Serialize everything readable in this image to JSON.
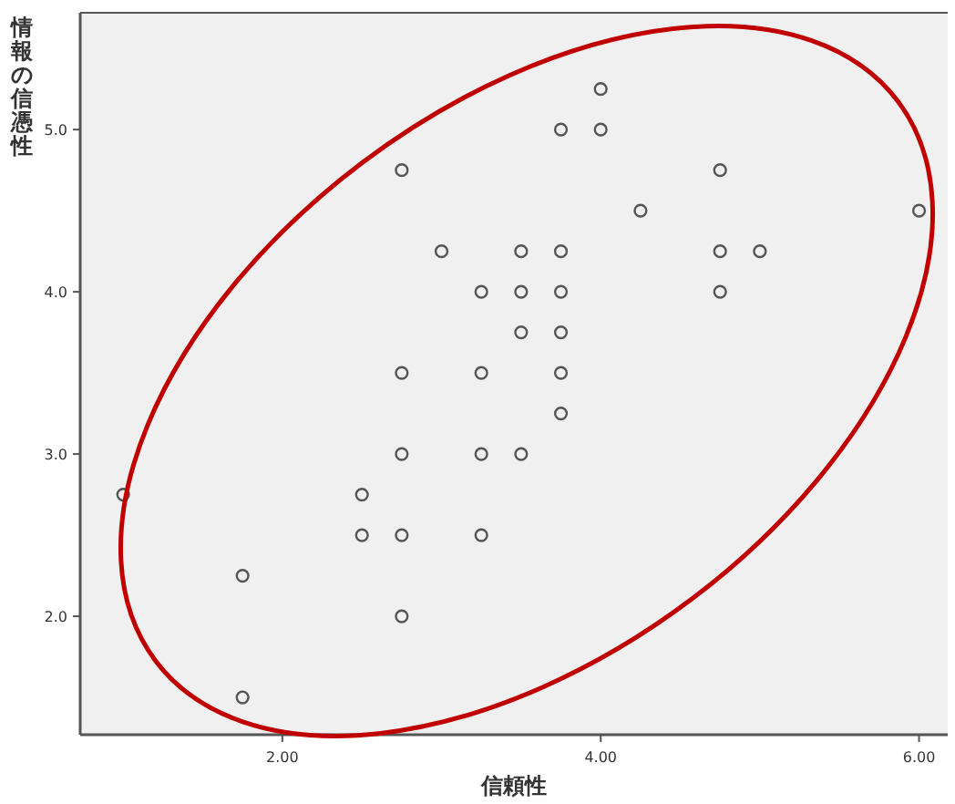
{
  "chart_data": {
    "type": "scatter",
    "xlabel": "信頼性",
    "ylabel": "情報の信憑性",
    "xlim": [
      0.73,
      6.18
    ],
    "ylim": [
      1.27,
      5.72
    ],
    "xticks": [
      {
        "value": 2,
        "label": "2.00"
      },
      {
        "value": 4,
        "label": "4.00"
      },
      {
        "value": 6,
        "label": "6.00"
      }
    ],
    "yticks": [
      {
        "value": 2,
        "label": "2.0"
      },
      {
        "value": 3,
        "label": "3.0"
      },
      {
        "value": 4,
        "label": "4.0"
      },
      {
        "value": 5,
        "label": "5.0"
      }
    ],
    "marker": "circle",
    "series": [
      {
        "color": "#555555",
        "x": [
          4.0,
          3.75,
          4.0,
          2.75,
          4.75,
          4.25,
          6.0,
          3.0,
          3.5,
          3.75,
          4.75,
          5.0,
          3.25,
          3.5,
          3.75,
          4.75,
          3.5,
          3.75,
          2.75,
          3.25,
          3.75,
          3.75,
          2.75,
          3.25,
          3.5,
          1.0,
          2.5,
          2.5,
          2.75,
          3.25,
          1.75,
          2.75,
          1.75
        ],
        "values": [
          5.25,
          5.0,
          5.0,
          4.75,
          4.75,
          4.5,
          4.5,
          4.25,
          4.25,
          4.25,
          4.25,
          4.25,
          4.0,
          4.0,
          4.0,
          4.0,
          3.75,
          3.75,
          3.5,
          3.5,
          3.5,
          3.25,
          3.0,
          3.0,
          3.0,
          2.75,
          2.75,
          2.5,
          2.5,
          2.5,
          2.25,
          2.0,
          1.5
        ]
      }
    ]
  }
}
